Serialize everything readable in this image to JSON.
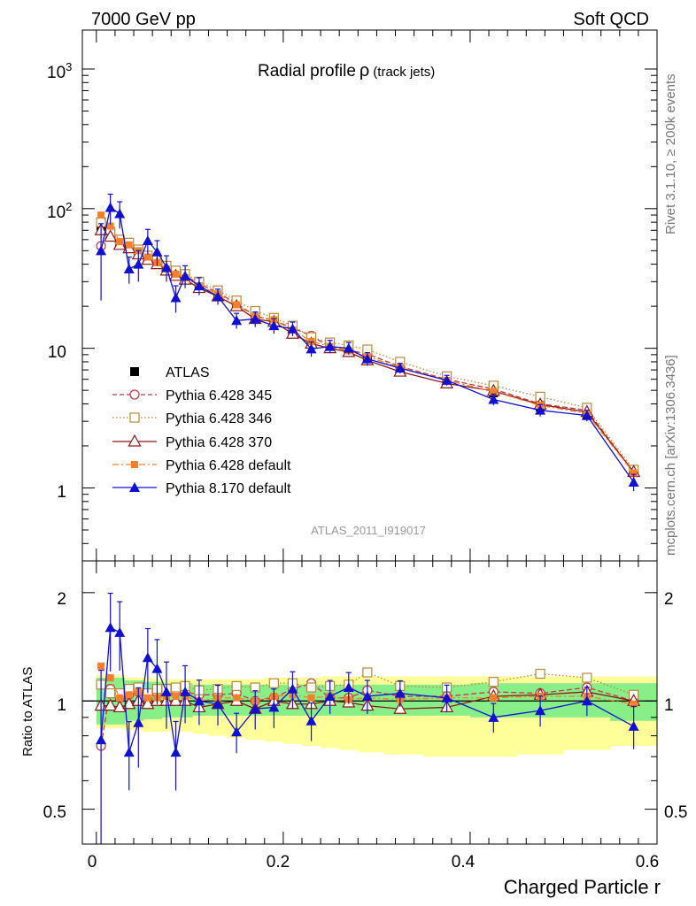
{
  "header": {
    "left": "7000 GeV pp",
    "right": "Soft QCD"
  },
  "side_labels": {
    "rivet": "Rivet 3.1.10, ≥ 200k events",
    "mcplots": "mcplots.cern.ch [arXiv:1306.3436]"
  },
  "chart_data": {
    "type": "scatter",
    "title": "Radial profile ρ",
    "title_main": "Radial profile",
    "title_symbol": "ρ",
    "title_sub": "(track jets)",
    "analysis_id": "ATLAS_2011_I919017",
    "xlabel": "Charged Particle r",
    "ylabel_main": "",
    "ylabel_ratio": "Ratio to ATLAS",
    "xlim": [
      -0.015,
      0.6
    ],
    "ylim_main": [
      0.3,
      1900
    ],
    "ylim_ratio": [
      0.4,
      2.45
    ],
    "main_yscale": "log",
    "ratio_yscale": "log",
    "xticks": [
      "0",
      "0.2",
      "0.4",
      "0.6"
    ],
    "main_yticks": [
      "1",
      "10",
      "10^2",
      "10^3"
    ],
    "ratio_yticks": [
      "0.5",
      "1",
      "2"
    ],
    "legend_position": "mid-left",
    "x": [
      0.005,
      0.015,
      0.025,
      0.035,
      0.045,
      0.055,
      0.065,
      0.075,
      0.085,
      0.095,
      0.11,
      0.13,
      0.15,
      0.17,
      0.19,
      0.21,
      0.23,
      0.25,
      0.27,
      0.29,
      0.325,
      0.375,
      0.425,
      0.475,
      0.525,
      0.575
    ],
    "atlas_band_inner": [
      [
        0.86,
        1.16
      ],
      [
        0.86,
        1.16
      ],
      [
        0.86,
        1.16
      ],
      [
        0.88,
        1.14
      ],
      [
        0.88,
        1.14
      ],
      [
        0.89,
        1.13
      ],
      [
        0.89,
        1.13
      ],
      [
        0.9,
        1.12
      ],
      [
        0.9,
        1.12
      ],
      [
        0.9,
        1.12
      ],
      [
        0.91,
        1.11
      ],
      [
        0.91,
        1.11
      ],
      [
        0.91,
        1.11
      ],
      [
        0.91,
        1.11
      ],
      [
        0.91,
        1.11
      ],
      [
        0.91,
        1.11
      ],
      [
        0.91,
        1.11
      ],
      [
        0.91,
        1.11
      ],
      [
        0.91,
        1.11
      ],
      [
        0.91,
        1.11
      ],
      [
        0.91,
        1.11
      ],
      [
        0.91,
        1.11
      ],
      [
        0.9,
        1.12
      ],
      [
        0.9,
        1.12
      ],
      [
        0.9,
        1.12
      ],
      [
        0.88,
        1.12
      ]
    ],
    "atlas_band_outer": [
      [
        0.84,
        1.18
      ],
      [
        0.84,
        1.18
      ],
      [
        0.84,
        1.18
      ],
      [
        0.83,
        1.16
      ],
      [
        0.83,
        1.16
      ],
      [
        0.82,
        1.16
      ],
      [
        0.82,
        1.15
      ],
      [
        0.82,
        1.15
      ],
      [
        0.82,
        1.15
      ],
      [
        0.82,
        1.15
      ],
      [
        0.81,
        1.15
      ],
      [
        0.8,
        1.15
      ],
      [
        0.79,
        1.15
      ],
      [
        0.78,
        1.15
      ],
      [
        0.77,
        1.16
      ],
      [
        0.76,
        1.16
      ],
      [
        0.75,
        1.16
      ],
      [
        0.74,
        1.17
      ],
      [
        0.73,
        1.17
      ],
      [
        0.72,
        1.17
      ],
      [
        0.71,
        1.17
      ],
      [
        0.7,
        1.17
      ],
      [
        0.7,
        1.17
      ],
      [
        0.71,
        1.17
      ],
      [
        0.73,
        1.17
      ],
      [
        0.75,
        1.17
      ]
    ],
    "series": [
      {
        "name": "ATLAS",
        "color": "#000000",
        "marker": "square-filled",
        "line": "none",
        "values": [
          72,
          65,
          57,
          53,
          47,
          44,
          40,
          36,
          33,
          31,
          28,
          24,
          20,
          17,
          15.5,
          13,
          11,
          10,
          9.5,
          8.5,
          7.2,
          5.8,
          4.8,
          3.8,
          3.3,
          1.3
        ],
        "errors": [
          10,
          6,
          4,
          3,
          2.5,
          2,
          2,
          2,
          1.5,
          1.5,
          1.2,
          1,
          0.9,
          0.8,
          0.7,
          0.6,
          0.5,
          0.5,
          0.4,
          0.4,
          0.3,
          0.3,
          0.25,
          0.2,
          0.2,
          0.1
        ],
        "ratio": [
          1,
          1,
          1,
          1,
          1,
          1,
          1,
          1,
          1,
          1,
          1,
          1,
          1,
          1,
          1,
          1,
          1,
          1,
          1,
          1,
          1,
          1,
          1,
          1,
          1,
          1
        ]
      },
      {
        "name": "Pythia 6.428 345",
        "color": "#c0393f",
        "marker": "circle-open",
        "line": "dashed",
        "values": [
          54,
          70,
          58,
          55,
          50,
          45,
          42,
          38,
          35,
          33,
          29,
          25,
          21,
          17,
          15.8,
          14,
          12.3,
          10.2,
          9.7,
          9.1,
          7.4,
          6,
          5.1,
          4,
          3.6,
          1.3
        ],
        "ratio": [
          0.75,
          1.08,
          1.02,
          1.04,
          1.06,
          1.02,
          1.05,
          1.06,
          1.06,
          1.06,
          1.04,
          1.04,
          1.05,
          1.0,
          1.02,
          1.08,
          1.12,
          1.02,
          1.02,
          1.07,
          1.03,
          1.03,
          1.06,
          1.05,
          1.09,
          1.0
        ]
      },
      {
        "name": "Pythia 6.428 346",
        "color": "#b58a3c",
        "marker": "square-open",
        "line": "dotted",
        "values": [
          80,
          68,
          60,
          57,
          51,
          46,
          43,
          39,
          36,
          34,
          30,
          26,
          22,
          18.5,
          16.5,
          14.5,
          12,
          11,
          10.5,
          9.8,
          8,
          6.3,
          5.4,
          4.5,
          3.75,
          1.35
        ],
        "ratio": [
          1.11,
          1.05,
          1.05,
          1.08,
          1.09,
          1.05,
          1.08,
          1.08,
          1.09,
          1.1,
          1.07,
          1.08,
          1.1,
          1.09,
          1.12,
          1.12,
          1.09,
          1.1,
          1.11,
          1.2,
          1.1,
          1.09,
          1.13,
          1.19,
          1.16,
          1.04
        ]
      },
      {
        "name": "Pythia 6.428 370",
        "color": "#8a1a1a",
        "marker": "triangle-open",
        "line": "solid",
        "values": [
          70,
          63,
          55,
          52,
          47,
          43,
          40,
          36,
          33,
          31,
          27,
          23.5,
          20,
          16.2,
          15.5,
          12.7,
          10.8,
          10,
          9.4,
          8.2,
          6.8,
          5.6,
          4.95,
          3.95,
          3.5,
          1.3
        ],
        "ratio": [
          0.97,
          0.97,
          0.96,
          0.98,
          1.0,
          0.98,
          1.0,
          1.0,
          1.0,
          1.0,
          0.96,
          0.98,
          1.0,
          0.95,
          1.0,
          0.98,
          0.98,
          1.0,
          0.99,
          0.97,
          0.95,
          0.96,
          1.03,
          1.04,
          1.06,
          1.0
        ]
      },
      {
        "name": "Pythia 6.428 default",
        "color": "#f57f2a",
        "marker": "square-filled-small",
        "line": "dashdot",
        "values": [
          90,
          75,
          58,
          55,
          50,
          45,
          41,
          37,
          34,
          32,
          28,
          24.5,
          20.5,
          17,
          16,
          13.5,
          11.2,
          10.3,
          9.6,
          8.7,
          7.3,
          5.9,
          4.9,
          3.9,
          3.4,
          1.28
        ],
        "ratio": [
          1.25,
          1.16,
          1.02,
          1.04,
          1.06,
          1.02,
          1.02,
          1.03,
          1.03,
          1.03,
          1.0,
          1.02,
          1.02,
          1.0,
          1.03,
          1.04,
          1.02,
          1.03,
          1.01,
          1.02,
          1.01,
          1.02,
          1.02,
          1.03,
          1.03,
          0.98
        ]
      },
      {
        "name": "Pythia 8.170 default",
        "color": "#1010d0",
        "marker": "triangle-filled",
        "line": "solid",
        "values": [
          50,
          102,
          92,
          37,
          40,
          59,
          49,
          38,
          23,
          33,
          28,
          23.5,
          15.8,
          16.2,
          14.5,
          13.8,
          9.9,
          10.3,
          10,
          8.4,
          7.2,
          5.9,
          4.3,
          3.6,
          3.3,
          1.1
        ],
        "errors_low": [
          28,
          25,
          20,
          8,
          10,
          12,
          10,
          8,
          5,
          6,
          4,
          3,
          2,
          2,
          1.8,
          1.6,
          1.2,
          1.1,
          1.0,
          0.9,
          0.6,
          0.5,
          0.4,
          0.35,
          0.3,
          0.15
        ],
        "ratio": [
          0.78,
          1.6,
          1.55,
          0.72,
          0.87,
          1.32,
          1.23,
          1.06,
          0.72,
          1.06,
          1.0,
          0.98,
          0.82,
          0.95,
          0.96,
          1.08,
          0.88,
          1.03,
          1.09,
          1.03,
          1.05,
          1.02,
          0.9,
          0.94,
          1.0,
          0.85
        ]
      }
    ]
  }
}
